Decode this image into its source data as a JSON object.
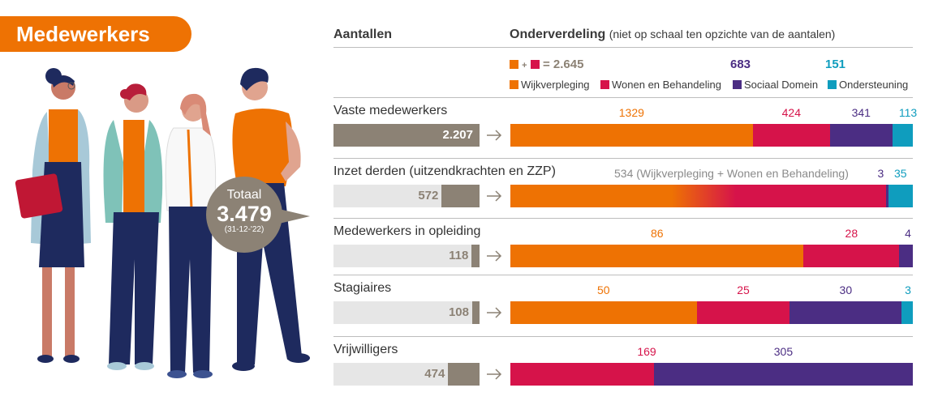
{
  "title": "Medewerkers",
  "header": {
    "left": "Aantallen",
    "right_bold": "Onderverdeling",
    "right_note": "(niet op schaal ten opzichte van de aantalen)"
  },
  "totals": {
    "plus": "+",
    "equals": "= 2.645",
    "sociaal": "683",
    "ondersteuning": "151"
  },
  "legend": [
    {
      "label": "Wijkverpleging",
      "color": "#EE7203"
    },
    {
      "label": "Wonen en Behandeling",
      "color": "#D6134A"
    },
    {
      "label": "Sociaal Domein",
      "color": "#4B2D83"
    },
    {
      "label": "Ondersteuning",
      "color": "#0F9DBE"
    }
  ],
  "total_bubble": {
    "label": "Totaal",
    "value": "3.479",
    "date": "(31-12-'22)"
  },
  "chart_data": {
    "type": "bar",
    "title": "Medewerkers",
    "total": 3479,
    "max_count": 2207,
    "rows": [
      {
        "label": "Vaste medewerkers",
        "count": 2207,
        "count_label": "2.207",
        "segments": [
          {
            "category": "Wijkverpleging",
            "value": 1329,
            "label": "1329"
          },
          {
            "category": "Wonen en Behandeling",
            "value": 424,
            "label": "424"
          },
          {
            "category": "Sociaal Domein",
            "value": 341,
            "label": "341"
          },
          {
            "category": "Ondersteuning",
            "value": 113,
            "label": "113"
          }
        ]
      },
      {
        "label": "Inzet derden (uitzendkrachten en ZZP)",
        "count": 572,
        "count_label": "572",
        "combined_note": "534 (Wijkverpleging + Wonen en Behandeling)",
        "segments": [
          {
            "category": "Wijkverpleging + Wonen en Behandeling",
            "value": 534,
            "label": ""
          },
          {
            "category": "Sociaal Domein",
            "value": 3,
            "label": "3"
          },
          {
            "category": "Ondersteuning",
            "value": 35,
            "label": "35"
          }
        ]
      },
      {
        "label": "Medewerkers in opleiding",
        "count": 118,
        "count_label": "118",
        "segments": [
          {
            "category": "Wijkverpleging",
            "value": 86,
            "label": "86"
          },
          {
            "category": "Wonen en Behandeling",
            "value": 28,
            "label": "28"
          },
          {
            "category": "Sociaal Domein",
            "value": 4,
            "label": "4"
          }
        ]
      },
      {
        "label": "Stagiaires",
        "count": 108,
        "count_label": "108",
        "segments": [
          {
            "category": "Wijkverpleging",
            "value": 50,
            "label": "50"
          },
          {
            "category": "Wonen en Behandeling",
            "value": 25,
            "label": "25"
          },
          {
            "category": "Sociaal Domein",
            "value": 30,
            "label": "30"
          },
          {
            "category": "Ondersteuning",
            "value": 3,
            "label": "3"
          }
        ]
      },
      {
        "label": "Vrijwilligers",
        "count": 474,
        "count_label": "474",
        "segments": [
          {
            "category": "Wonen en Behandeling",
            "value": 169,
            "label": "169"
          },
          {
            "category": "Sociaal Domein",
            "value": 305,
            "label": "305"
          }
        ]
      }
    ]
  }
}
